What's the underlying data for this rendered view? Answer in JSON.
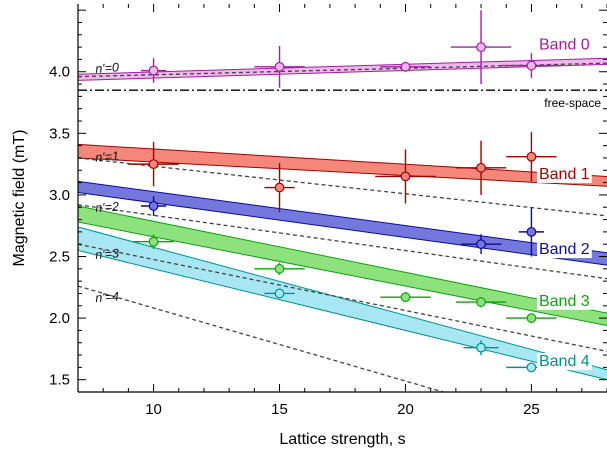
{
  "chart_data": {
    "type": "scatter",
    "xlabel": "Lattice strength, s",
    "ylabel": "Magnetic field  (mT)",
    "xlim": [
      7,
      28
    ],
    "ylim": [
      1.4,
      4.55
    ],
    "xticks": [
      10,
      15,
      20,
      25
    ],
    "yticks": [
      1.5,
      2.0,
      2.5,
      3.0,
      3.5,
      4.0
    ],
    "xtick_labels": [
      "10",
      "15",
      "20",
      "25"
    ],
    "ytick_labels": [
      "1.5",
      "2.0",
      "2.5",
      "3.0",
      "3.5",
      "4.0"
    ],
    "grid": false,
    "free_space": {
      "label": "free-space",
      "y": 3.85
    },
    "series": [
      {
        "name": "Band 0",
        "color": "#a020a0",
        "fill": "#f0b8ec",
        "label": "Band 0",
        "label_at": [
          25.3,
          4.18
        ],
        "band_x": [
          7,
          28
        ],
        "band_lower": [
          3.93,
          4.06
        ],
        "band_upper": [
          3.98,
          4.11
        ],
        "dashed_label": "n'=0",
        "dashed_label_at": [
          7.7,
          3.99
        ],
        "dashed_x": [
          7,
          28
        ],
        "dashed_y": [
          3.96,
          4.07
        ],
        "points": [
          {
            "x": 10,
            "y": 4.01,
            "xerr": 0.5,
            "yerr": 0.1
          },
          {
            "x": 15,
            "y": 4.04,
            "xerr": 1.0,
            "yerr": 0.17
          },
          {
            "x": 20,
            "y": 4.04,
            "xerr": 1.0,
            "yerr": 0.04
          },
          {
            "x": 23,
            "y": 4.2,
            "xerr": 1.2,
            "yerr": 0.3
          },
          {
            "x": 25,
            "y": 4.05,
            "xerr": 1.2,
            "yerr": 0.1
          }
        ]
      },
      {
        "name": "Band 1",
        "color": "#a00000",
        "fill": "#f4877a",
        "label": "Band 1",
        "label_at": [
          25.3,
          3.13
        ],
        "band_x": [
          7,
          28
        ],
        "band_lower": [
          3.3,
          3.07
        ],
        "band_upper": [
          3.41,
          3.15
        ],
        "dashed_label": "n'=1",
        "dashed_label_at": [
          7.7,
          3.27
        ],
        "dashed_x": [
          7,
          28
        ],
        "dashed_y": [
          3.3,
          2.83
        ],
        "points": [
          {
            "x": 10,
            "y": 3.25,
            "xerr": 1.0,
            "yerr": 0.18
          },
          {
            "x": 15,
            "y": 3.06,
            "xerr": 0.6,
            "yerr": 0.2
          },
          {
            "x": 20,
            "y": 3.15,
            "xerr": 1.2,
            "yerr": 0.22
          },
          {
            "x": 23,
            "y": 3.22,
            "xerr": 1.0,
            "yerr": 0.22
          },
          {
            "x": 25,
            "y": 3.31,
            "xerr": 1.0,
            "yerr": 0.2
          }
        ]
      },
      {
        "name": "Band 2",
        "color": "#0a0a9a",
        "fill": "#7478dc",
        "label": "Band 2",
        "label_at": [
          25.3,
          2.52
        ],
        "band_x": [
          7,
          28
        ],
        "band_lower": [
          3.02,
          2.43
        ],
        "band_upper": [
          3.11,
          2.53
        ],
        "dashed_label": "n'=2",
        "dashed_label_at": [
          7.7,
          2.86
        ],
        "dashed_x": [
          7,
          28
        ],
        "dashed_y": [
          2.92,
          2.32
        ],
        "points": [
          {
            "x": 10,
            "y": 2.91,
            "xerr": 0.5,
            "yerr": 0.08
          },
          {
            "x": 23,
            "y": 2.6,
            "xerr": 0.8,
            "yerr": 0.08
          },
          {
            "x": 25,
            "y": 2.7,
            "xerr": 0.5,
            "yerr": 0.2
          }
        ]
      },
      {
        "name": "Band 3",
        "color": "#10a010",
        "fill": "#8ee27e",
        "label": "Band 3",
        "label_at": [
          25.3,
          2.1
        ],
        "band_x": [
          7,
          28
        ],
        "band_lower": [
          2.78,
          1.94
        ],
        "band_upper": [
          2.91,
          2.04
        ],
        "dashed_label": "n'=3",
        "dashed_label_at": [
          7.7,
          2.48
        ],
        "dashed_x": [
          7,
          28
        ],
        "dashed_y": [
          2.6,
          1.73
        ],
        "points": [
          {
            "x": 10,
            "y": 2.62,
            "xerr": 0.8,
            "yerr": 0.06
          },
          {
            "x": 15,
            "y": 2.4,
            "xerr": 1.0,
            "yerr": 0.05
          },
          {
            "x": 20,
            "y": 2.17,
            "xerr": 1.0,
            "yerr": 0.04
          },
          {
            "x": 23,
            "y": 2.13,
            "xerr": 1.0,
            "yerr": 0.04
          },
          {
            "x": 25,
            "y": 2.0,
            "xerr": 1.0,
            "yerr": 0.04
          }
        ]
      },
      {
        "name": "Band 4",
        "color": "#009090",
        "fill": "#a8e6f4",
        "label": "Band 4",
        "label_at": [
          25.3,
          1.61
        ],
        "band_x": [
          7,
          28
        ],
        "band_lower": [
          2.55,
          1.5
        ],
        "band_upper": [
          2.74,
          1.58
        ],
        "dashed_label": "n'=4",
        "dashed_label_at": [
          7.7,
          2.13
        ],
        "dashed_x": [
          7,
          21.5
        ],
        "dashed_y": [
          2.26,
          1.4
        ],
        "points": [
          {
            "x": 15,
            "y": 2.2,
            "xerr": 0.6,
            "yerr": 0.04
          },
          {
            "x": 23,
            "y": 1.76,
            "xerr": 0.7,
            "yerr": 0.06
          },
          {
            "x": 25,
            "y": 1.6,
            "xerr": 1.0,
            "yerr": 0.04
          }
        ]
      }
    ]
  }
}
